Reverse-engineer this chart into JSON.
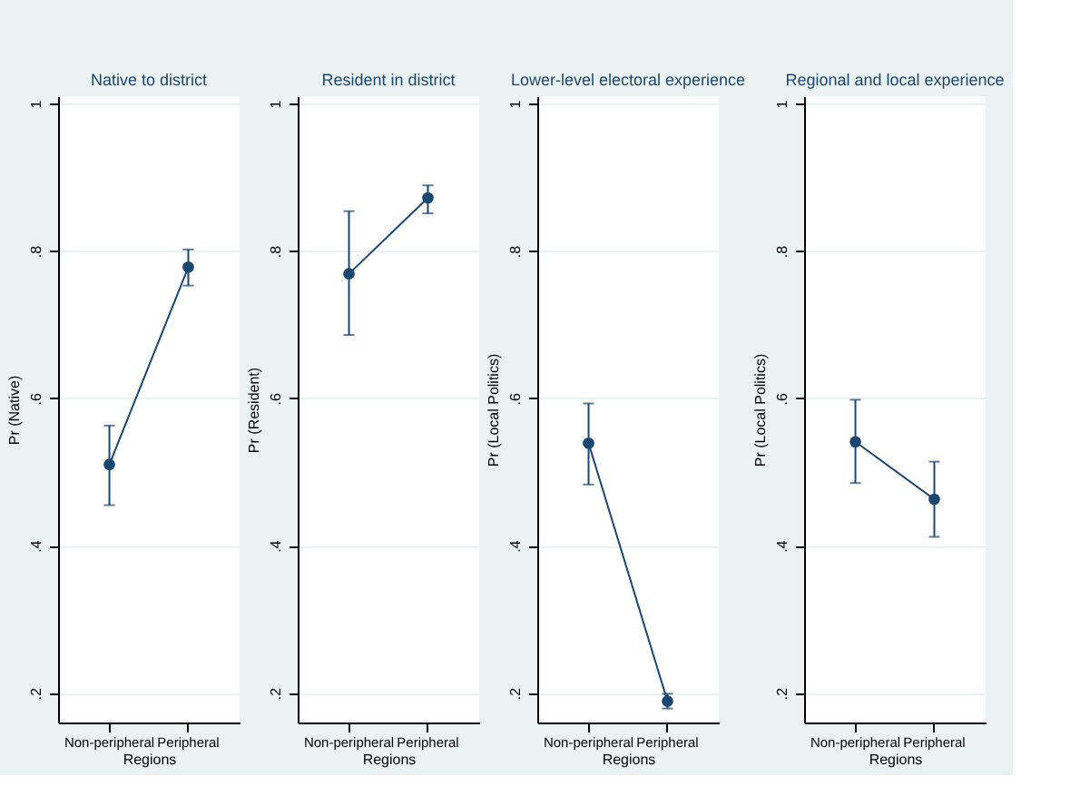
{
  "chart_data": [
    {
      "type": "line",
      "title": "Native to district",
      "xlabel": "Regions",
      "ylabel": "Pr (Native)",
      "categories": [
        "Non-peripheral",
        "Peripheral"
      ],
      "ylim": [
        0.16,
        1.01
      ],
      "yticks": [
        {
          "value": 0.2,
          "label": ".2"
        },
        {
          "value": 0.4,
          "label": ".4"
        },
        {
          "value": 0.6,
          "label": ".6"
        },
        {
          "value": 0.8,
          "label": ".8"
        },
        1
      ],
      "grid": "y",
      "marker": "circle",
      "line_style": "solid",
      "series": [
        {
          "color": "#1a476f",
          "values": [
            0.51,
            0.778
          ],
          "errors": [
            [
              0.455,
              0.563
            ],
            [
              0.753,
              0.802
            ]
          ]
        }
      ]
    },
    {
      "type": "line",
      "title": "Resident in district",
      "xlabel": "Regions",
      "ylabel": "Pr (Resident)",
      "categories": [
        "Non-peripheral",
        "Peripheral"
      ],
      "ylim": [
        0.16,
        1.01
      ],
      "yticks": [
        {
          "value": 0.2,
          "label": ".2"
        },
        {
          "value": 0.4,
          "label": ".4"
        },
        {
          "value": 0.6,
          "label": ".6"
        },
        {
          "value": 0.8,
          "label": ".8"
        },
        1
      ],
      "grid": "y",
      "marker": "circle",
      "line_style": "solid",
      "series": [
        {
          "color": "#1a476f",
          "values": [
            0.769,
            0.872
          ],
          "errors": [
            [
              0.686,
              0.854
            ],
            [
              0.851,
              0.889
            ]
          ]
        }
      ]
    },
    {
      "type": "line",
      "title": "Lower-level electoral experience",
      "xlabel": "Regions",
      "ylabel": "Pr (Local Politics)",
      "categories": [
        "Non-peripheral",
        "Peripheral"
      ],
      "ylim": [
        0.16,
        1.01
      ],
      "yticks": [
        {
          "value": 0.2,
          "label": ".2"
        },
        {
          "value": 0.4,
          "label": ".4"
        },
        {
          "value": 0.6,
          "label": ".6"
        },
        {
          "value": 0.8,
          "label": ".8"
        },
        1
      ],
      "grid": "y",
      "marker": "circle",
      "line_style": "solid",
      "series": [
        {
          "color": "#1a476f",
          "values": [
            0.539,
            0.189
          ],
          "errors": [
            [
              0.483,
              0.593
            ],
            [
              0.179,
              0.199
            ]
          ]
        }
      ]
    },
    {
      "type": "line",
      "title": "Regional and local experience",
      "xlabel": "Regions",
      "ylabel": "Pr (Local Politics)",
      "categories": [
        "Non-peripheral",
        "Peripheral"
      ],
      "ylim": [
        0.16,
        1.01
      ],
      "yticks": [
        {
          "value": 0.2,
          "label": ".2"
        },
        {
          "value": 0.4,
          "label": ".4"
        },
        {
          "value": 0.6,
          "label": ".6"
        },
        {
          "value": 0.8,
          "label": ".8"
        },
        1
      ],
      "grid": "y",
      "marker": "circle",
      "line_style": "solid",
      "series": [
        {
          "color": "#1a476f",
          "values": [
            0.541,
            0.463
          ],
          "errors": [
            [
              0.485,
              0.598
            ],
            [
              0.412,
              0.514
            ]
          ]
        }
      ]
    }
  ]
}
